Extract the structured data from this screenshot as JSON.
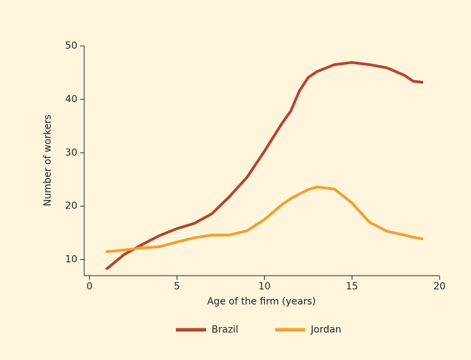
{
  "chart_data": {
    "type": "line",
    "x_label": "Age of the firm (years)",
    "y_label": "Number of workers",
    "x": [
      1,
      2,
      3,
      4,
      5,
      5.5,
      6,
      7,
      8,
      9,
      10,
      11,
      11.5,
      12,
      12.5,
      13,
      14,
      15,
      16,
      17,
      18,
      18.5,
      19
    ],
    "series": [
      {
        "name": "Brazil",
        "color": "#b5452b",
        "values": [
          8.3,
          11.0,
          12.8,
          14.5,
          15.8,
          16.3,
          16.8,
          18.6,
          21.8,
          25.4,
          30.3,
          35.5,
          37.8,
          41.6,
          44.1,
          45.2,
          46.5,
          46.9,
          46.5,
          45.9,
          44.5,
          43.4,
          43.2
        ]
      },
      {
        "name": "Jordan",
        "color": "#f0a030",
        "values": [
          11.5,
          11.8,
          12.2,
          12.4,
          13.3,
          13.7,
          14.1,
          14.6,
          14.6,
          15.4,
          17.5,
          20.3,
          21.4,
          22.3,
          23.1,
          23.6,
          23.2,
          20.6,
          17.0,
          15.3,
          14.6,
          14.2,
          13.9
        ]
      }
    ],
    "xlim": [
      -0.3,
      20
    ],
    "xticks": [
      0,
      5,
      10,
      15,
      20
    ],
    "ylim": [
      7,
      50
    ],
    "yticks": [
      10,
      20,
      30,
      40,
      50
    ],
    "legend": "bottom"
  }
}
